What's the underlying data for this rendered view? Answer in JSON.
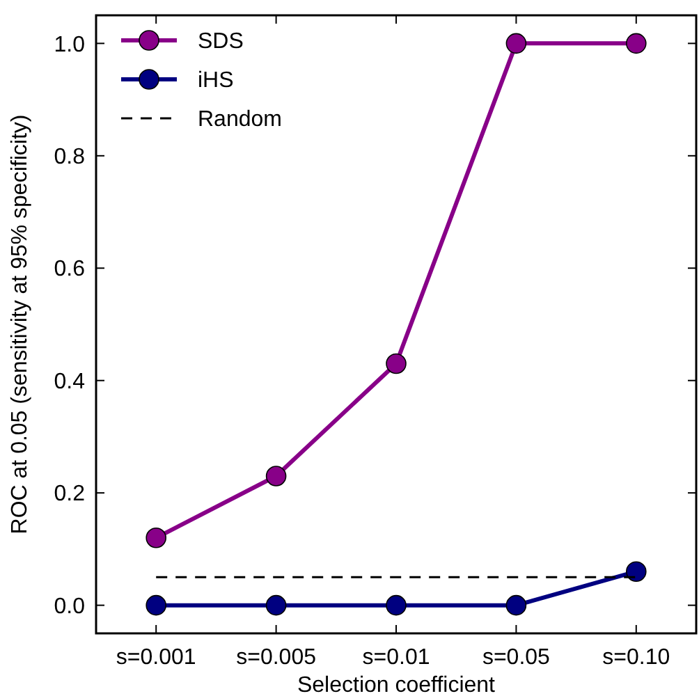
{
  "chart_data": {
    "type": "line",
    "xlabel": "Selection coefficient",
    "ylabel": "ROC at 0.05 (sensitivity at 95% specificity)",
    "categories": [
      "s=0.001",
      "s=0.005",
      "s=0.01",
      "s=0.05",
      "s=0.10"
    ],
    "series": [
      {
        "name": "SDS",
        "color": "#880088",
        "values": [
          0.12,
          0.23,
          0.43,
          1.0,
          1.0
        ]
      },
      {
        "name": "iHS",
        "color": "#000080",
        "values": [
          0,
          0,
          0,
          0,
          0.06
        ]
      },
      {
        "name": "Random",
        "color": "#000000",
        "values": [
          0.05,
          0.05,
          0.05,
          0.05,
          0.05
        ],
        "marker": "none",
        "line_style": "dashed"
      }
    ],
    "ylim": [
      -0.05,
      1.05
    ],
    "yticks": [
      {
        "value": 0,
        "label": "0.0"
      },
      {
        "value": 0.2,
        "label": "0.2"
      },
      {
        "value": 0.4,
        "label": "0.4"
      },
      {
        "value": 0.6,
        "label": "0.6"
      },
      {
        "value": 0.8,
        "label": "0.8"
      },
      {
        "value": 1,
        "label": "1.0"
      }
    ],
    "grid": false,
    "legend": "top left",
    "marker": "circle",
    "line_style": "solid"
  }
}
